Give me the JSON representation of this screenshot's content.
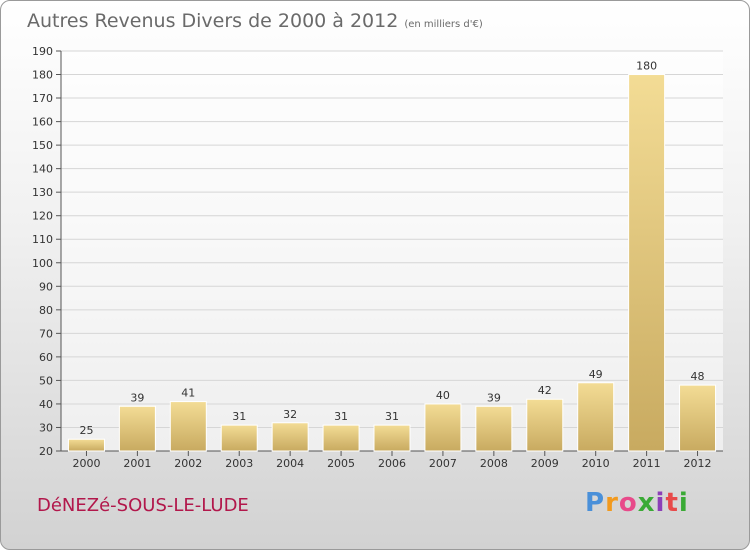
{
  "title": "Autres Revenus Divers de 2000 à 2012",
  "subtitle": "(en milliers d'€)",
  "place_name": "DéNEZé-SOUS-LE-LUDE",
  "logo": {
    "letters": [
      "P",
      "r",
      "o",
      "x",
      "i",
      "t",
      "i"
    ],
    "colors": [
      "#4a90d9",
      "#f29a1e",
      "#e84a8a",
      "#3aaa35",
      "#8c3fb8",
      "#e84a4a",
      "#3aaa35"
    ]
  },
  "colors": {
    "bar_light": "#f3dc95",
    "bar_dark": "#c8aa60",
    "place": "#b2174b"
  },
  "chart_data": {
    "type": "bar",
    "title": "Autres Revenus Divers de 2000 à 2012",
    "subtitle": "(en milliers d'€)",
    "categories": [
      "2000",
      "2001",
      "2002",
      "2003",
      "2004",
      "2005",
      "2006",
      "2007",
      "2008",
      "2009",
      "2010",
      "2011",
      "2012"
    ],
    "values": [
      25,
      39,
      41,
      31,
      32,
      31,
      31,
      40,
      39,
      42,
      49,
      180,
      48
    ],
    "ylim": [
      20,
      190
    ],
    "yticks": [
      20,
      30,
      40,
      50,
      60,
      70,
      80,
      90,
      100,
      110,
      120,
      130,
      140,
      150,
      160,
      170,
      180,
      190
    ],
    "grid": true,
    "legend": "none"
  }
}
